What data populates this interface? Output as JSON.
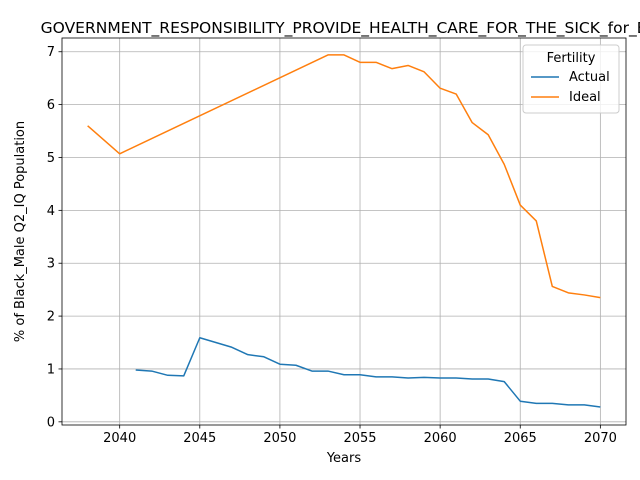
{
  "chart_data": {
    "type": "line",
    "title": "GOVERNMENT_RESPONSIBILITY_PROVIDE_HEALTH_CARE_FOR_THE_SICK_for_B",
    "xlabel": "Years",
    "ylabel": "% of Black_Male Q2_IQ Population",
    "xlim": [
      2036.4,
      2071.6
    ],
    "ylim": [
      -0.06,
      7.26
    ],
    "x_ticks": [
      2040,
      2045,
      2050,
      2055,
      2060,
      2065,
      2070
    ],
    "y_ticks": [
      0,
      1,
      2,
      3,
      4,
      5,
      6,
      7
    ],
    "grid": true,
    "legend": {
      "title": "Fertility",
      "placement": "top-right"
    },
    "series": [
      {
        "name": "Actual",
        "color": "#1f77b4",
        "x": [
          2041,
          2042,
          2043,
          2044,
          2045,
          2046,
          2047,
          2048,
          2049,
          2050,
          2051,
          2052,
          2053,
          2054,
          2055,
          2056,
          2057,
          2058,
          2059,
          2060,
          2061,
          2062,
          2063,
          2064,
          2065,
          2066,
          2067,
          2068,
          2069,
          2070
        ],
        "y": [
          0.98,
          0.96,
          0.88,
          0.87,
          1.59,
          1.5,
          1.41,
          1.27,
          1.23,
          1.09,
          1.07,
          0.96,
          0.96,
          0.89,
          0.89,
          0.85,
          0.85,
          0.83,
          0.84,
          0.83,
          0.83,
          0.81,
          0.81,
          0.76,
          0.39,
          0.35,
          0.35,
          0.32,
          0.32,
          0.28
        ]
      },
      {
        "name": "Ideal",
        "color": "#ff7f0e",
        "x": [
          2038,
          2040,
          2053,
          2054,
          2055,
          2056,
          2057,
          2058,
          2059,
          2060,
          2061,
          2062,
          2063,
          2064,
          2065,
          2066,
          2067,
          2068,
          2069,
          2070
        ],
        "y": [
          5.6,
          5.07,
          6.94,
          6.94,
          6.8,
          6.8,
          6.68,
          6.74,
          6.62,
          6.31,
          6.2,
          5.66,
          5.43,
          4.87,
          4.1,
          3.8,
          2.56,
          2.44,
          2.4,
          2.35
        ]
      }
    ]
  }
}
